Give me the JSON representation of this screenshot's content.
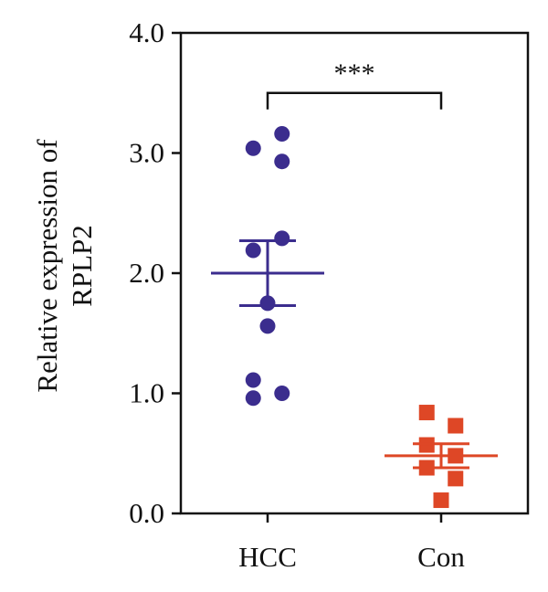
{
  "chart_data": {
    "type": "scatter",
    "title": "",
    "xlabel": "",
    "ylabel": [
      "Relative expression of",
      "RPLP2"
    ],
    "ylim": [
      0,
      4.0
    ],
    "yticks": [
      0.0,
      1.0,
      2.0,
      3.0,
      4.0
    ],
    "ytick_labels": [
      "0.0",
      "1.0",
      "2.0",
      "3.0",
      "4.0"
    ],
    "categories": [
      "HCC",
      "Con"
    ],
    "grid": false,
    "colors": {
      "HCC": "#3b2d8e",
      "Con": "#de4726",
      "axis": "#111111"
    },
    "series": [
      {
        "category": "HCC",
        "marker": "circle",
        "points": [
          {
            "x_offset": -0.09,
            "y": 3.04
          },
          {
            "x_offset": 0.09,
            "y": 3.16
          },
          {
            "x_offset": 0.09,
            "y": 2.93
          },
          {
            "x_offset": -0.09,
            "y": 2.19
          },
          {
            "x_offset": 0.09,
            "y": 2.29
          },
          {
            "x_offset": 0.0,
            "y": 1.75
          },
          {
            "x_offset": 0.0,
            "y": 1.56
          },
          {
            "x_offset": -0.09,
            "y": 1.11
          },
          {
            "x_offset": -0.09,
            "y": 0.96
          },
          {
            "x_offset": 0.09,
            "y": 1.0
          }
        ],
        "mean": 2.0,
        "sem": 0.27
      },
      {
        "category": "Con",
        "marker": "square",
        "points": [
          {
            "x_offset": -0.09,
            "y": 0.84
          },
          {
            "x_offset": 0.09,
            "y": 0.73
          },
          {
            "x_offset": -0.09,
            "y": 0.57
          },
          {
            "x_offset": 0.09,
            "y": 0.48
          },
          {
            "x_offset": -0.09,
            "y": 0.38
          },
          {
            "x_offset": 0.09,
            "y": 0.29
          },
          {
            "x_offset": 0.0,
            "y": 0.11
          }
        ],
        "mean": 0.48,
        "sem": 0.1
      }
    ],
    "significance": {
      "label": "***",
      "y": 3.5,
      "between": [
        "HCC",
        "Con"
      ]
    }
  }
}
